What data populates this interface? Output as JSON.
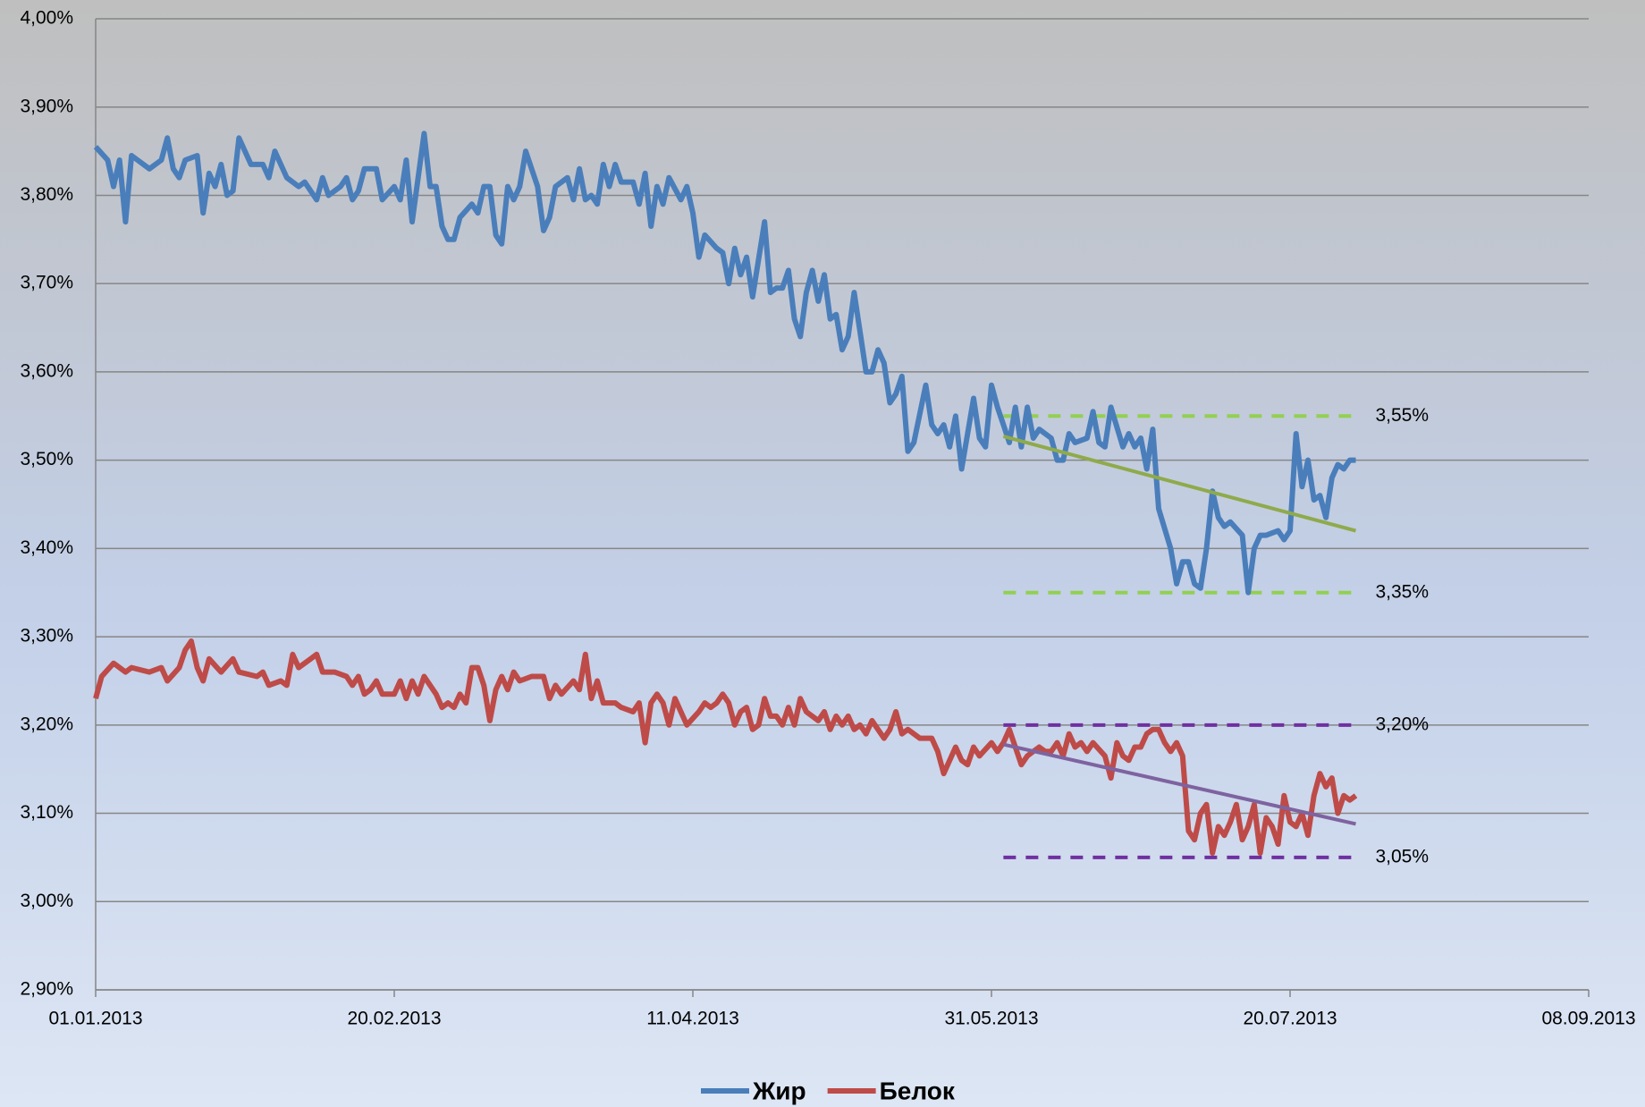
{
  "chart_data": {
    "type": "line",
    "xlim": [
      "01.01.2013",
      "08.09.2013"
    ],
    "xticks": [
      "01.01.2013",
      "20.02.2013",
      "11.04.2013",
      "31.05.2013",
      "20.07.2013",
      "08.09.2013"
    ],
    "ylim": [
      2.9,
      4.0
    ],
    "yticks": [
      {
        "value": 2.9,
        "label": "2,90%"
      },
      {
        "value": 3.0,
        "label": "3,00%"
      },
      {
        "value": 3.1,
        "label": "3,10%"
      },
      {
        "value": 3.2,
        "label": "3,20%"
      },
      {
        "value": 3.3,
        "label": "3,30%"
      },
      {
        "value": 3.4,
        "label": "3,40%"
      },
      {
        "value": 3.5,
        "label": "3,50%"
      },
      {
        "value": 3.6,
        "label": "3,60%"
      },
      {
        "value": 3.7,
        "label": "3,70%"
      },
      {
        "value": 3.8,
        "label": "3,80%"
      },
      {
        "value": 3.9,
        "label": "3,90%"
      },
      {
        "value": 4.0,
        "label": "4,00%"
      }
    ],
    "grid": true,
    "legend": "bottom",
    "series": [
      {
        "name": "Жир",
        "color": "#4a7ebb",
        "x": [
          "01.01.2013",
          "03.01.2013",
          "04.01.2013",
          "05.01.2013",
          "06.01.2013",
          "07.01.2013",
          "10.01.2013",
          "12.01.2013",
          "13.01.2013",
          "14.01.2013",
          "15.01.2013",
          "16.01.2013",
          "18.01.2013",
          "19.01.2013",
          "20.01.2013",
          "21.01.2013",
          "22.01.2013",
          "23.01.2013",
          "24.01.2013",
          "25.01.2013",
          "27.01.2013",
          "29.01.2013",
          "30.01.2013",
          "31.01.2013",
          "02.02.2013",
          "04.02.2013",
          "05.02.2013",
          "07.02.2013",
          "08.02.2013",
          "09.02.2013",
          "11.02.2013",
          "12.02.2013",
          "13.02.2013",
          "14.02.2013",
          "15.02.2013",
          "17.02.2013",
          "18.02.2013",
          "20.02.2013",
          "21.02.2013",
          "22.02.2013",
          "23.02.2013",
          "25.02.2013",
          "26.02.2013",
          "27.02.2013",
          "28.02.2013",
          "01.03.2013",
          "02.03.2013",
          "03.03.2013",
          "05.03.2013",
          "06.03.2013",
          "07.03.2013",
          "08.03.2013",
          "09.03.2013",
          "10.03.2013",
          "11.03.2013",
          "12.03.2013",
          "13.03.2013",
          "14.03.2013",
          "16.03.2013",
          "17.03.2013",
          "18.03.2013",
          "19.03.2013",
          "21.03.2013",
          "22.03.2013",
          "23.03.2013",
          "24.03.2013",
          "25.03.2013",
          "26.03.2013",
          "27.03.2013",
          "28.03.2013",
          "29.03.2013",
          "30.03.2013",
          "01.04.2013",
          "02.04.2013",
          "03.04.2013",
          "04.04.2013",
          "05.04.2013",
          "06.04.2013",
          "07.04.2013",
          "09.04.2013",
          "10.04.2013",
          "11.04.2013",
          "12.04.2013",
          "13.04.2013",
          "15.04.2013",
          "16.04.2013",
          "17.04.2013",
          "18.04.2013",
          "19.04.2013",
          "20.04.2013",
          "21.04.2013",
          "23.04.2013",
          "24.04.2013",
          "25.04.2013",
          "26.04.2013",
          "27.04.2013",
          "28.04.2013",
          "29.04.2013",
          "30.04.2013",
          "01.05.2013",
          "02.05.2013",
          "03.05.2013",
          "04.05.2013",
          "05.05.2013",
          "06.05.2013",
          "07.05.2013",
          "08.05.2013",
          "10.05.2013",
          "11.05.2013",
          "12.05.2013",
          "13.05.2013",
          "14.05.2013",
          "15.05.2013",
          "16.05.2013",
          "17.05.2013",
          "18.05.2013",
          "20.05.2013",
          "21.05.2013",
          "22.05.2013",
          "23.05.2013",
          "24.05.2013",
          "25.05.2013",
          "26.05.2013",
          "27.05.2013",
          "28.05.2013",
          "29.05.2013",
          "30.05.2013",
          "31.05.2013",
          "01.06.2013",
          "02.06.2013",
          "03.06.2013",
          "04.06.2013",
          "05.06.2013",
          "06.06.2013",
          "07.06.2013",
          "08.06.2013",
          "10.06.2013",
          "11.06.2013",
          "12.06.2013",
          "13.06.2013",
          "14.06.2013",
          "16.06.2013",
          "17.06.2013",
          "18.06.2013",
          "19.06.2013",
          "20.06.2013",
          "22.06.2013",
          "23.06.2013",
          "24.06.2013",
          "25.06.2013",
          "26.06.2013",
          "27.06.2013",
          "28.06.2013",
          "30.06.2013",
          "01.07.2013",
          "02.07.2013",
          "03.07.2013",
          "04.07.2013",
          "05.07.2013",
          "06.07.2013",
          "07.07.2013",
          "08.07.2013",
          "09.07.2013",
          "10.07.2013",
          "12.07.2013",
          "13.07.2013",
          "14.07.2013",
          "15.07.2013",
          "16.07.2013",
          "18.07.2013",
          "19.07.2013",
          "20.07.2013",
          "21.07.2013",
          "22.07.2013",
          "23.07.2013",
          "24.07.2013",
          "25.07.2013",
          "26.07.2013",
          "27.07.2013",
          "28.07.2013",
          "29.07.2013",
          "30.07.2013",
          "31.07.2013"
        ],
        "values": [
          3.855,
          3.84,
          3.81,
          3.84,
          3.77,
          3.845,
          3.83,
          3.84,
          3.865,
          3.83,
          3.82,
          3.84,
          3.845,
          3.78,
          3.825,
          3.81,
          3.835,
          3.8,
          3.805,
          3.865,
          3.835,
          3.835,
          3.82,
          3.85,
          3.82,
          3.81,
          3.815,
          3.795,
          3.82,
          3.8,
          3.81,
          3.82,
          3.795,
          3.805,
          3.83,
          3.83,
          3.795,
          3.81,
          3.795,
          3.84,
          3.77,
          3.87,
          3.81,
          3.81,
          3.765,
          3.75,
          3.75,
          3.775,
          3.79,
          3.78,
          3.81,
          3.81,
          3.755,
          3.745,
          3.81,
          3.795,
          3.81,
          3.85,
          3.81,
          3.76,
          3.775,
          3.81,
          3.82,
          3.795,
          3.83,
          3.795,
          3.8,
          3.79,
          3.835,
          3.81,
          3.835,
          3.815,
          3.815,
          3.79,
          3.825,
          3.765,
          3.81,
          3.79,
          3.82,
          3.795,
          3.81,
          3.78,
          3.73,
          3.755,
          3.74,
          3.735,
          3.7,
          3.74,
          3.71,
          3.73,
          3.685,
          3.77,
          3.69,
          3.695,
          3.695,
          3.715,
          3.66,
          3.64,
          3.69,
          3.715,
          3.68,
          3.71,
          3.66,
          3.665,
          3.625,
          3.64,
          3.69,
          3.6,
          3.6,
          3.625,
          3.61,
          3.565,
          3.575,
          3.595,
          3.51,
          3.52,
          3.585,
          3.54,
          3.53,
          3.54,
          3.515,
          3.55,
          3.49,
          3.53,
          3.57,
          3.525,
          3.515,
          3.585,
          3.56,
          3.54,
          3.52,
          3.56,
          3.515,
          3.56,
          3.525,
          3.535,
          3.525,
          3.5,
          3.5,
          3.53,
          3.52,
          3.525,
          3.555,
          3.52,
          3.515,
          3.56,
          3.515,
          3.53,
          3.515,
          3.525,
          3.49,
          3.535,
          3.445,
          3.4,
          3.36,
          3.385,
          3.385,
          3.36,
          3.355,
          3.4,
          3.465,
          3.435,
          3.425,
          3.43,
          3.415,
          3.35,
          3.4,
          3.415,
          3.415,
          3.42,
          3.41,
          3.42,
          3.53,
          3.47,
          3.5,
          3.455,
          3.46,
          3.435,
          3.48,
          3.495,
          3.49,
          3.5,
          3.5
        ]
      },
      {
        "name": "Белок",
        "color": "#be4b48",
        "x": [
          "01.01.2013",
          "02.01.2013",
          "04.01.2013",
          "06.01.2013",
          "07.01.2013",
          "10.01.2013",
          "12.01.2013",
          "13.01.2013",
          "15.01.2013",
          "16.01.2013",
          "17.01.2013",
          "18.01.2013",
          "19.01.2013",
          "20.01.2013",
          "22.01.2013",
          "24.01.2013",
          "25.01.2013",
          "28.01.2013",
          "29.01.2013",
          "30.01.2013",
          "01.02.2013",
          "02.02.2013",
          "03.02.2013",
          "04.02.2013",
          "06.02.2013",
          "07.02.2013",
          "08.02.2013",
          "10.02.2013",
          "12.02.2013",
          "13.02.2013",
          "14.02.2013",
          "15.02.2013",
          "16.02.2013",
          "17.02.2013",
          "18.02.2013",
          "20.02.2013",
          "21.02.2013",
          "22.02.2013",
          "23.02.2013",
          "24.02.2013",
          "25.02.2013",
          "27.02.2013",
          "28.02.2013",
          "01.03.2013",
          "02.03.2013",
          "03.03.2013",
          "04.03.2013",
          "05.03.2013",
          "06.03.2013",
          "07.03.2013",
          "08.03.2013",
          "09.03.2013",
          "10.03.2013",
          "11.03.2013",
          "12.03.2013",
          "13.03.2013",
          "15.03.2013",
          "17.03.2013",
          "18.03.2013",
          "19.03.2013",
          "20.03.2013",
          "22.03.2013",
          "23.03.2013",
          "24.03.2013",
          "25.03.2013",
          "26.03.2013",
          "27.03.2013",
          "29.03.2013",
          "30.03.2013",
          "01.04.2013",
          "02.04.2013",
          "03.04.2013",
          "04.04.2013",
          "05.04.2013",
          "06.04.2013",
          "07.04.2013",
          "08.04.2013",
          "09.04.2013",
          "10.04.2013",
          "12.04.2013",
          "13.04.2013",
          "14.04.2013",
          "15.04.2013",
          "16.04.2013",
          "17.04.2013",
          "18.04.2013",
          "19.04.2013",
          "20.04.2013",
          "21.04.2013",
          "22.04.2013",
          "23.04.2013",
          "24.04.2013",
          "25.04.2013",
          "26.04.2013",
          "27.04.2013",
          "28.04.2013",
          "29.04.2013",
          "30.04.2013",
          "02.05.2013",
          "03.05.2013",
          "04.05.2013",
          "05.05.2013",
          "06.05.2013",
          "07.05.2013",
          "08.05.2013",
          "09.05.2013",
          "10.05.2013",
          "11.05.2013",
          "12.05.2013",
          "13.05.2013",
          "14.05.2013",
          "15.05.2013",
          "16.05.2013",
          "17.05.2013",
          "19.05.2013",
          "21.05.2013",
          "22.05.2013",
          "23.05.2013",
          "25.05.2013",
          "26.05.2013",
          "27.05.2013",
          "28.05.2013",
          "29.05.2013",
          "31.05.2013",
          "01.06.2013",
          "02.06.2013",
          "03.06.2013",
          "05.06.2013",
          "06.06.2013",
          "08.06.2013",
          "09.06.2013",
          "10.06.2013",
          "11.06.2013",
          "12.06.2013",
          "13.06.2013",
          "14.06.2013",
          "15.06.2013",
          "16.06.2013",
          "17.06.2013",
          "19.06.2013",
          "20.06.2013",
          "21.06.2013",
          "22.06.2013",
          "23.06.2013",
          "24.06.2013",
          "25.06.2013",
          "26.06.2013",
          "27.06.2013",
          "28.06.2013",
          "29.06.2013",
          "30.06.2013",
          "01.07.2013",
          "02.07.2013",
          "03.07.2013",
          "04.07.2013",
          "05.07.2013",
          "06.07.2013",
          "07.07.2013",
          "08.07.2013",
          "09.07.2013",
          "10.07.2013",
          "11.07.2013",
          "12.07.2013",
          "13.07.2013",
          "14.07.2013",
          "15.07.2013",
          "16.07.2013",
          "17.07.2013",
          "18.07.2013",
          "19.07.2013",
          "20.07.2013",
          "21.07.2013",
          "22.07.2013",
          "23.07.2013",
          "24.07.2013",
          "25.07.2013",
          "26.07.2013",
          "27.07.2013",
          "28.07.2013",
          "29.07.2013",
          "30.07.2013",
          "31.07.2013"
        ],
        "values": [
          3.23,
          3.255,
          3.27,
          3.26,
          3.265,
          3.26,
          3.265,
          3.25,
          3.265,
          3.285,
          3.295,
          3.265,
          3.25,
          3.275,
          3.26,
          3.275,
          3.26,
          3.255,
          3.26,
          3.245,
          3.25,
          3.245,
          3.28,
          3.265,
          3.275,
          3.28,
          3.26,
          3.26,
          3.255,
          3.245,
          3.255,
          3.235,
          3.24,
          3.25,
          3.235,
          3.235,
          3.25,
          3.23,
          3.25,
          3.235,
          3.255,
          3.235,
          3.22,
          3.225,
          3.22,
          3.235,
          3.225,
          3.265,
          3.265,
          3.245,
          3.205,
          3.24,
          3.255,
          3.24,
          3.26,
          3.25,
          3.255,
          3.255,
          3.23,
          3.245,
          3.235,
          3.25,
          3.24,
          3.28,
          3.23,
          3.25,
          3.225,
          3.225,
          3.22,
          3.215,
          3.225,
          3.18,
          3.225,
          3.235,
          3.225,
          3.2,
          3.23,
          3.215,
          3.2,
          3.215,
          3.225,
          3.22,
          3.225,
          3.235,
          3.225,
          3.2,
          3.215,
          3.22,
          3.195,
          3.2,
          3.23,
          3.21,
          3.21,
          3.2,
          3.22,
          3.2,
          3.23,
          3.215,
          3.205,
          3.215,
          3.195,
          3.21,
          3.2,
          3.21,
          3.195,
          3.2,
          3.19,
          3.205,
          3.195,
          3.185,
          3.195,
          3.215,
          3.19,
          3.195,
          3.185,
          3.185,
          3.17,
          3.145,
          3.175,
          3.16,
          3.155,
          3.175,
          3.165,
          3.18,
          3.17,
          3.18,
          3.195,
          3.155,
          3.165,
          3.175,
          3.17,
          3.17,
          3.18,
          3.165,
          3.19,
          3.175,
          3.18,
          3.17,
          3.18,
          3.165,
          3.14,
          3.18,
          3.165,
          3.16,
          3.175,
          3.175,
          3.19,
          3.195,
          3.195,
          3.18,
          3.17,
          3.18,
          3.165,
          3.08,
          3.07,
          3.1,
          3.11,
          3.055,
          3.085,
          3.075,
          3.09,
          3.11,
          3.07,
          3.085,
          3.11,
          3.055,
          3.095,
          3.085,
          3.065,
          3.12,
          3.09,
          3.085,
          3.1,
          3.075,
          3.12,
          3.145,
          3.13,
          3.14,
          3.1,
          3.12,
          3.115,
          3.12
        ]
      }
    ],
    "trend_lines": [
      {
        "color": "#8faa4a",
        "x": [
          "02.06.2013",
          "31.07.2013"
        ],
        "values": [
          3.527,
          3.42
        ]
      },
      {
        "color": "#7e63a0",
        "x": [
          "02.06.2013",
          "31.07.2013"
        ],
        "values": [
          3.178,
          3.088
        ]
      }
    ],
    "reference_lines": [
      {
        "value": 3.55,
        "label": "3,55%",
        "color": "#92d050",
        "x": [
          "02.06.2013",
          "31.07.2013"
        ]
      },
      {
        "value": 3.35,
        "label": "3,35%",
        "color": "#92d050",
        "x": [
          "02.06.2013",
          "31.07.2013"
        ]
      },
      {
        "value": 3.2,
        "label": "3,20%",
        "color": "#7030a0",
        "x": [
          "02.06.2013",
          "31.07.2013"
        ]
      },
      {
        "value": 3.05,
        "label": "3,05%",
        "color": "#7030a0",
        "x": [
          "02.06.2013",
          "31.07.2013"
        ]
      }
    ]
  }
}
